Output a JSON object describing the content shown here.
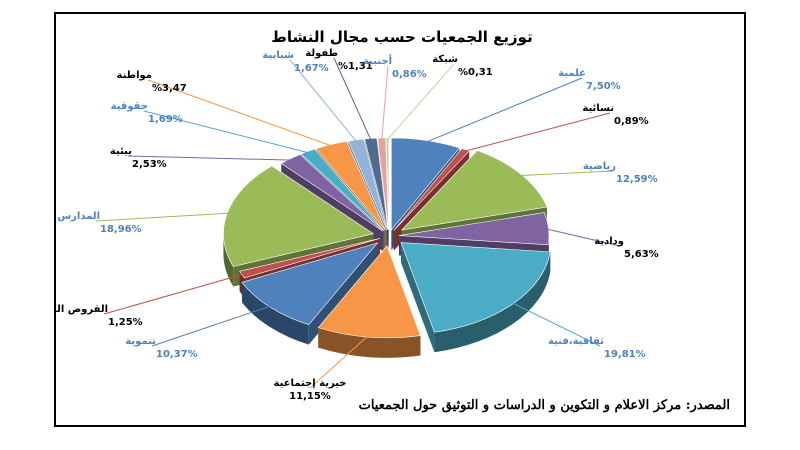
{
  "chart_data": {
    "type": "pie",
    "title": "توزيع الجمعيات حسب مجال النشاط",
    "source": "المصدر: مركز الاعلام و التكوين و الدراسات و التوثيق حول الجمعيات",
    "slices": [
      {
        "name": "علمية",
        "label": "7,50%",
        "value": 7.5,
        "color": "#4f81bd",
        "text_color": "#4f81bd"
      },
      {
        "name": "نسائية",
        "label": "0,89%",
        "value": 0.89,
        "color": "#c0504d",
        "text_color": "#000000"
      },
      {
        "name": "رياضية",
        "label": "12,59%",
        "value": 12.59,
        "color": "#9bbb59",
        "text_color": "#4f81bd"
      },
      {
        "name": "ودادية",
        "label": "5,63%",
        "value": 5.63,
        "color": "#8064a2",
        "text_color": "#000000"
      },
      {
        "name": "ثقافية،فنية",
        "label": "19,81%",
        "value": 19.81,
        "color": "#4bacc6",
        "text_color": "#4f81bd"
      },
      {
        "name": "خيرية إجتماعية",
        "label": "11,15%",
        "value": 11.15,
        "color": "#f79646",
        "text_color": "#000000"
      },
      {
        "name": "تنموية",
        "label": "10,37%",
        "value": 10.37,
        "color": "#4f81bd",
        "text_color": "#4f81bd"
      },
      {
        "name": "القروض الصغيرة",
        "label": "1,25%",
        "value": 1.25,
        "color": "#c0504d",
        "text_color": "#000000"
      },
      {
        "name": "المدارس",
        "label": "18,96%",
        "value": 18.96,
        "color": "#9bbb59",
        "text_color": "#4f81bd"
      },
      {
        "name": "بيئية",
        "label": "2,53%",
        "value": 2.53,
        "color": "#8064a2",
        "text_color": "#000000"
      },
      {
        "name": "حقوقية",
        "label": "1,69%",
        "value": 1.69,
        "color": "#4bacc6",
        "text_color": "#4f81bd"
      },
      {
        "name": "مواطنة",
        "label": "%3,47",
        "value": 3.47,
        "color": "#f79646",
        "text_color": "#000000"
      },
      {
        "name": "شبابية",
        "label": "1,67%",
        "value": 1.67,
        "color": "#95b3d7",
        "text_color": "#4f81bd"
      },
      {
        "name": "طفولة",
        "label": "%1,31",
        "value": 1.31,
        "color": "#4f6c8f",
        "text_color": "#000000"
      },
      {
        "name": "أجنبية",
        "label": "0,86%",
        "value": 0.86,
        "color": "#e6a0a0",
        "text_color": "#4f81bd"
      },
      {
        "name": "شبكة",
        "label": "%0,31",
        "value": 0.31,
        "color": "#c3d69b",
        "text_color": "#000000"
      }
    ]
  }
}
